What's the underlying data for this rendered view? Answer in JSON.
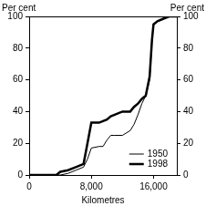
{
  "chart_data": {
    "type": "line",
    "ylabel": "Per cent",
    "y2label": "Per cent",
    "xlabel": "Kilometres",
    "x": [
      0,
      3500,
      4000,
      5000,
      6000,
      7000,
      7500,
      8000,
      9000,
      9500,
      10000,
      10500,
      11000,
      12000,
      13000,
      13500,
      14000,
      14500,
      15000,
      15500,
      15800,
      16000,
      16500,
      17000,
      18000,
      19000
    ],
    "series": [
      {
        "name": "1950",
        "color": "#000000",
        "line_style": "thin",
        "values": [
          0,
          0,
          0,
          1,
          3,
          5,
          10,
          17,
          18,
          18,
          22,
          25,
          25,
          25,
          28,
          32,
          38,
          45,
          50,
          60,
          85,
          95,
          97,
          98,
          100,
          100
        ]
      },
      {
        "name": "1998",
        "color": "#000000",
        "line_style": "thick",
        "values": [
          0,
          0,
          2,
          3,
          5,
          7,
          20,
          33,
          33,
          34,
          35,
          37,
          38,
          40,
          40,
          43,
          45,
          48,
          50,
          62,
          85,
          95,
          97,
          98,
          100,
          100
        ]
      }
    ],
    "xlim": [
      0,
      19000
    ],
    "xticks": [
      0,
      8000,
      16000
    ],
    "ylim": [
      0,
      100
    ],
    "yticks": [
      0,
      20,
      40,
      60,
      80,
      100
    ],
    "y2lim": [
      0,
      100
    ],
    "y2ticks": [
      0,
      20,
      40,
      60,
      80,
      100
    ],
    "grid": false,
    "legend": "lower right"
  }
}
